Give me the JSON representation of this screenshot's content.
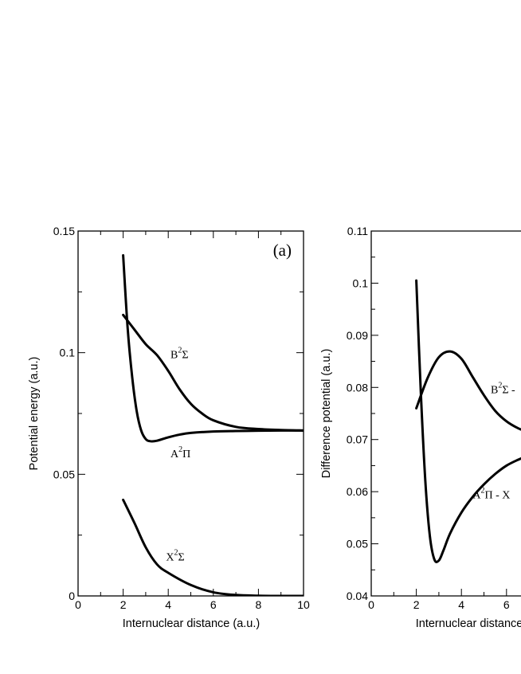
{
  "chart_data": [
    {
      "type": "line",
      "title": "",
      "panel_label": "(a)",
      "xlabel": "Internuclear distance (a.u.)",
      "ylabel": "Potential energy (a.u.)",
      "xlim": [
        0,
        10
      ],
      "ylim": [
        0,
        0.15
      ],
      "x_ticks": [
        0,
        2,
        4,
        6,
        8,
        10
      ],
      "x_tick_labels": [
        "0",
        "2",
        "4",
        "6",
        "8",
        "10"
      ],
      "y_ticks": [
        0,
        0.05,
        0.1,
        0.15
      ],
      "y_tick_labels": [
        "0",
        "0.05",
        "0.1",
        "0.15"
      ],
      "grid": false,
      "series": [
        {
          "key": "A2Pi",
          "x": [
            2.0,
            2.2,
            2.4,
            2.6,
            2.8,
            3.0,
            3.2,
            3.5,
            4.0,
            4.5,
            5.0,
            6.0,
            7.0,
            8.0,
            9.0,
            10.0
          ],
          "y": [
            0.14,
            0.11,
            0.09,
            0.076,
            0.068,
            0.0645,
            0.0636,
            0.0638,
            0.0652,
            0.0663,
            0.067,
            0.0676,
            0.0678,
            0.0679,
            0.068,
            0.068
          ]
        },
        {
          "key": "B2Sigma",
          "x": [
            2.0,
            2.5,
            3.0,
            3.5,
            4.0,
            4.5,
            5.0,
            5.5,
            6.0,
            7.0,
            8.0,
            9.0,
            10.0
          ],
          "y": [
            0.1155,
            0.1095,
            0.1035,
            0.099,
            0.0925,
            0.085,
            0.079,
            0.075,
            0.0722,
            0.0695,
            0.0686,
            0.0682,
            0.068
          ]
        },
        {
          "key": "X2Sigma",
          "x": [
            2.0,
            2.5,
            3.0,
            3.5,
            4.0,
            5.0,
            6.0,
            7.0,
            8.0,
            9.0,
            10.0
          ],
          "y": [
            0.0395,
            0.03,
            0.02,
            0.013,
            0.0095,
            0.0045,
            0.0015,
            0.0004,
            0.0001,
            0.0,
            0.0
          ]
        }
      ],
      "annotations": [
        {
          "key": "B2Sigma",
          "base": "B",
          "sup": "2",
          "rest": "Σ",
          "at": [
            4.1,
            0.0978
          ]
        },
        {
          "key": "A2Pi",
          "base": "A",
          "sup": "2",
          "rest": "Π",
          "at": [
            4.1,
            0.057
          ]
        },
        {
          "key": "X2Sigma",
          "base": "X",
          "sup": "2",
          "rest": "Σ",
          "at": [
            3.9,
            0.0145
          ]
        }
      ]
    },
    {
      "type": "line",
      "title": "",
      "xlabel": "Internuclear distance (a.u.)",
      "ylabel": "Difference potential (a.u.)",
      "xlim": [
        0,
        10
      ],
      "ylim": [
        0.04,
        0.11
      ],
      "x_ticks": [
        0,
        2,
        4,
        6
      ],
      "x_tick_labels": [
        "0",
        "2",
        "4",
        "6"
      ],
      "y_ticks": [
        0.04,
        0.05,
        0.06,
        0.07,
        0.08,
        0.09,
        0.1,
        0.11
      ],
      "y_tick_labels": [
        "0.04",
        "0.05",
        "0.06",
        "0.07",
        "0.08",
        "0.09",
        "0.1",
        "0.11"
      ],
      "grid": false,
      "series": [
        {
          "key": "A2Pi-X2Sigma",
          "x": [
            2.0,
            2.2,
            2.4,
            2.6,
            2.8,
            3.0,
            3.2,
            3.5,
            4.0,
            4.5,
            5.0,
            5.5,
            6.0,
            6.5,
            7.0
          ],
          "y": [
            0.1005,
            0.079,
            0.062,
            0.0515,
            0.047,
            0.0468,
            0.0487,
            0.052,
            0.056,
            0.059,
            0.0614,
            0.0634,
            0.065,
            0.0661,
            0.067
          ]
        },
        {
          "key": "B2Sigma-X2Sigma",
          "x": [
            2.0,
            2.5,
            3.0,
            3.5,
            4.0,
            4.5,
            5.0,
            5.5,
            6.0,
            6.5,
            7.0
          ],
          "y": [
            0.076,
            0.0818,
            0.0858,
            0.0869,
            0.0855,
            0.082,
            0.0785,
            0.0755,
            0.0735,
            0.0722,
            0.0713
          ]
        }
      ],
      "annotations": [
        {
          "key": "B2Sigma-X2Sigma",
          "base": "B",
          "sup": "2",
          "rest": "Σ -",
          "at": [
            5.3,
            0.0789
          ]
        },
        {
          "key": "A2Pi-X2Sigma",
          "base": "A",
          "sup": "2",
          "rest": "Π - X",
          "at": [
            4.5,
            0.0587
          ]
        }
      ]
    }
  ]
}
